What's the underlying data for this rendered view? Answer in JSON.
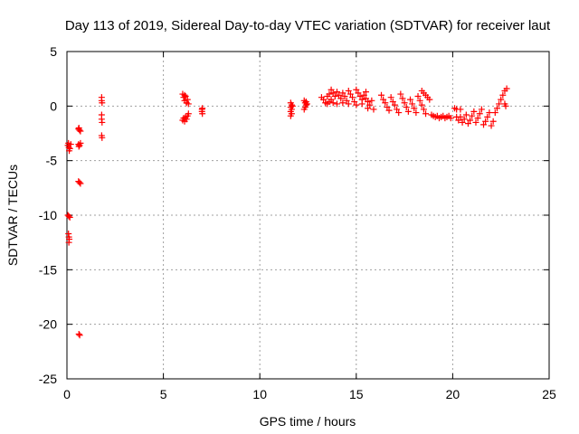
{
  "chart_data": {
    "type": "scatter",
    "title": "Day 113 of 2019, Sidereal Day-to-day VTEC variation (SDTVAR) for receiver laut",
    "xlabel": "GPS time / hours",
    "ylabel": "SDTVAR / TECUs",
    "xlim": [
      0,
      25
    ],
    "ylim": [
      -25,
      5
    ],
    "xticks": [
      0,
      5,
      10,
      15,
      20,
      25
    ],
    "yticks": [
      -25,
      -20,
      -15,
      -10,
      -5,
      0,
      5
    ],
    "xtick_labels": [
      "0",
      "5",
      "10",
      "15",
      "20",
      "25"
    ],
    "ytick_labels": [
      "-25",
      "-20",
      "-15",
      "-10",
      "-5",
      "0",
      "5"
    ],
    "grid": true,
    "marker": "+",
    "series": [
      {
        "name": "SDTVAR",
        "color": "#ff0000",
        "points": [
          [
            0.05,
            -3.6
          ],
          [
            0.1,
            -3.8
          ],
          [
            0.12,
            -4.1
          ],
          [
            0.08,
            -3.4
          ],
          [
            0.2,
            -3.5
          ],
          [
            0.15,
            -3.9
          ],
          [
            0.05,
            -10.0
          ],
          [
            0.1,
            -10.1
          ],
          [
            0.15,
            -10.2
          ],
          [
            0.08,
            -11.7
          ],
          [
            0.1,
            -12.0
          ],
          [
            0.12,
            -12.2
          ],
          [
            0.1,
            -12.5
          ],
          [
            0.6,
            -2.1
          ],
          [
            0.65,
            -2.2
          ],
          [
            0.7,
            -2.3
          ],
          [
            0.62,
            -2.0
          ],
          [
            0.6,
            -3.5
          ],
          [
            0.65,
            -3.6
          ],
          [
            0.7,
            -3.4
          ],
          [
            0.62,
            -3.7
          ],
          [
            0.6,
            -6.9
          ],
          [
            0.65,
            -7.0
          ],
          [
            0.7,
            -7.1
          ],
          [
            0.62,
            -20.9
          ],
          [
            0.66,
            -21.0
          ],
          [
            1.8,
            0.8
          ],
          [
            1.8,
            0.5
          ],
          [
            1.82,
            0.3
          ],
          [
            1.8,
            -0.8
          ],
          [
            1.8,
            -1.2
          ],
          [
            1.82,
            -1.5
          ],
          [
            1.8,
            -2.7
          ],
          [
            1.82,
            -2.9
          ],
          [
            6.0,
            1.1
          ],
          [
            6.05,
            0.8
          ],
          [
            6.1,
            0.5
          ],
          [
            6.15,
            0.9
          ],
          [
            6.2,
            0.3
          ],
          [
            6.25,
            0.6
          ],
          [
            6.3,
            0.2
          ],
          [
            6.1,
            1.0
          ],
          [
            6.0,
            -1.3
          ],
          [
            6.05,
            -1.1
          ],
          [
            6.1,
            -1.4
          ],
          [
            6.15,
            -1.0
          ],
          [
            6.2,
            -1.2
          ],
          [
            6.25,
            -0.9
          ],
          [
            6.3,
            -0.7
          ],
          [
            7.0,
            -0.3
          ],
          [
            7.0,
            -0.5
          ],
          [
            7.02,
            -0.7
          ],
          [
            7.02,
            -0.2
          ],
          [
            11.6,
            0.3
          ],
          [
            11.65,
            0.1
          ],
          [
            11.6,
            -0.1
          ],
          [
            11.65,
            -0.3
          ],
          [
            11.6,
            -0.5
          ],
          [
            11.65,
            -0.7
          ],
          [
            11.6,
            -0.9
          ],
          [
            11.7,
            0.0
          ],
          [
            12.3,
            0.5
          ],
          [
            12.35,
            0.3
          ],
          [
            12.4,
            0.1
          ],
          [
            12.35,
            -0.1
          ],
          [
            12.3,
            -0.3
          ],
          [
            12.4,
            0.4
          ],
          [
            12.45,
            0.2
          ],
          [
            13.2,
            0.8
          ],
          [
            13.3,
            0.6
          ],
          [
            13.4,
            0.3
          ],
          [
            13.5,
            0.9
          ],
          [
            13.6,
            1.1
          ],
          [
            13.7,
            1.5
          ],
          [
            13.8,
            1.2
          ],
          [
            13.9,
            0.9
          ],
          [
            13.5,
            0.2
          ],
          [
            13.6,
            0.4
          ],
          [
            13.7,
            0.6
          ],
          [
            13.8,
            0.3
          ],
          [
            14.0,
            1.3
          ],
          [
            14.1,
            1.0
          ],
          [
            14.2,
            0.7
          ],
          [
            14.3,
            1.2
          ],
          [
            14.4,
            0.9
          ],
          [
            14.5,
            0.5
          ],
          [
            14.6,
            1.4
          ],
          [
            14.7,
            1.1
          ],
          [
            14.8,
            0.8
          ],
          [
            14.9,
            0.4
          ],
          [
            15.0,
            1.5
          ],
          [
            15.1,
            1.2
          ],
          [
            15.2,
            0.9
          ],
          [
            15.3,
            0.6
          ],
          [
            15.4,
            1.0
          ],
          [
            15.5,
            0.7
          ],
          [
            15.6,
            0.4
          ],
          [
            15.7,
            0.1
          ],
          [
            15.5,
            1.3
          ],
          [
            15.8,
            0.5
          ],
          [
            14.0,
            0.2
          ],
          [
            14.3,
            0.3
          ],
          [
            14.6,
            0.2
          ],
          [
            15.0,
            0.1
          ],
          [
            15.3,
            0.2
          ],
          [
            15.6,
            -0.2
          ],
          [
            15.9,
            -0.3
          ],
          [
            16.3,
            1.0
          ],
          [
            16.4,
            0.6
          ],
          [
            16.5,
            0.3
          ],
          [
            16.6,
            -0.1
          ],
          [
            16.7,
            -0.4
          ],
          [
            16.8,
            0.8
          ],
          [
            16.9,
            0.4
          ],
          [
            17.0,
            0.1
          ],
          [
            17.1,
            -0.3
          ],
          [
            17.2,
            -0.6
          ],
          [
            17.3,
            1.1
          ],
          [
            17.4,
            0.7
          ],
          [
            17.5,
            0.3
          ],
          [
            17.6,
            -0.1
          ],
          [
            17.7,
            -0.5
          ],
          [
            17.8,
            0.6
          ],
          [
            17.9,
            0.2
          ],
          [
            18.0,
            -0.2
          ],
          [
            18.1,
            -0.6
          ],
          [
            18.2,
            0.9
          ],
          [
            18.3,
            0.5
          ],
          [
            18.4,
            0.1
          ],
          [
            18.5,
            -0.3
          ],
          [
            18.6,
            -0.7
          ],
          [
            18.4,
            1.4
          ],
          [
            18.5,
            1.2
          ],
          [
            18.6,
            1.0
          ],
          [
            18.7,
            0.8
          ],
          [
            18.8,
            0.6
          ],
          [
            18.9,
            -0.8
          ],
          [
            19.0,
            -0.9
          ],
          [
            19.1,
            -1.0
          ],
          [
            19.2,
            -0.9
          ],
          [
            19.3,
            -1.1
          ],
          [
            19.4,
            -1.0
          ],
          [
            19.5,
            -0.9
          ],
          [
            19.6,
            -1.1
          ],
          [
            19.7,
            -1.0
          ],
          [
            19.8,
            -0.9
          ],
          [
            19.9,
            -1.1
          ],
          [
            20.1,
            -0.2
          ],
          [
            20.2,
            -0.3
          ],
          [
            20.4,
            -0.3
          ],
          [
            20.2,
            -1.0
          ],
          [
            20.3,
            -1.3
          ],
          [
            20.4,
            -1.0
          ],
          [
            20.5,
            -1.5
          ],
          [
            20.6,
            -1.2
          ],
          [
            20.7,
            -0.8
          ],
          [
            20.8,
            -1.6
          ],
          [
            20.9,
            -1.3
          ],
          [
            21.0,
            -0.9
          ],
          [
            21.1,
            -0.5
          ],
          [
            21.2,
            -1.5
          ],
          [
            21.3,
            -1.1
          ],
          [
            21.4,
            -0.7
          ],
          [
            21.5,
            -0.3
          ],
          [
            21.6,
            -1.7
          ],
          [
            21.7,
            -1.4
          ],
          [
            21.8,
            -1.0
          ],
          [
            21.9,
            -0.6
          ],
          [
            22.0,
            -1.8
          ],
          [
            22.1,
            -1.4
          ],
          [
            22.2,
            -0.6
          ],
          [
            22.3,
            -0.2
          ],
          [
            22.4,
            0.2
          ],
          [
            22.5,
            0.6
          ],
          [
            22.6,
            1.0
          ],
          [
            22.7,
            1.4
          ],
          [
            22.8,
            1.6
          ],
          [
            22.7,
            0.2
          ],
          [
            22.75,
            0.0
          ]
        ]
      }
    ]
  }
}
